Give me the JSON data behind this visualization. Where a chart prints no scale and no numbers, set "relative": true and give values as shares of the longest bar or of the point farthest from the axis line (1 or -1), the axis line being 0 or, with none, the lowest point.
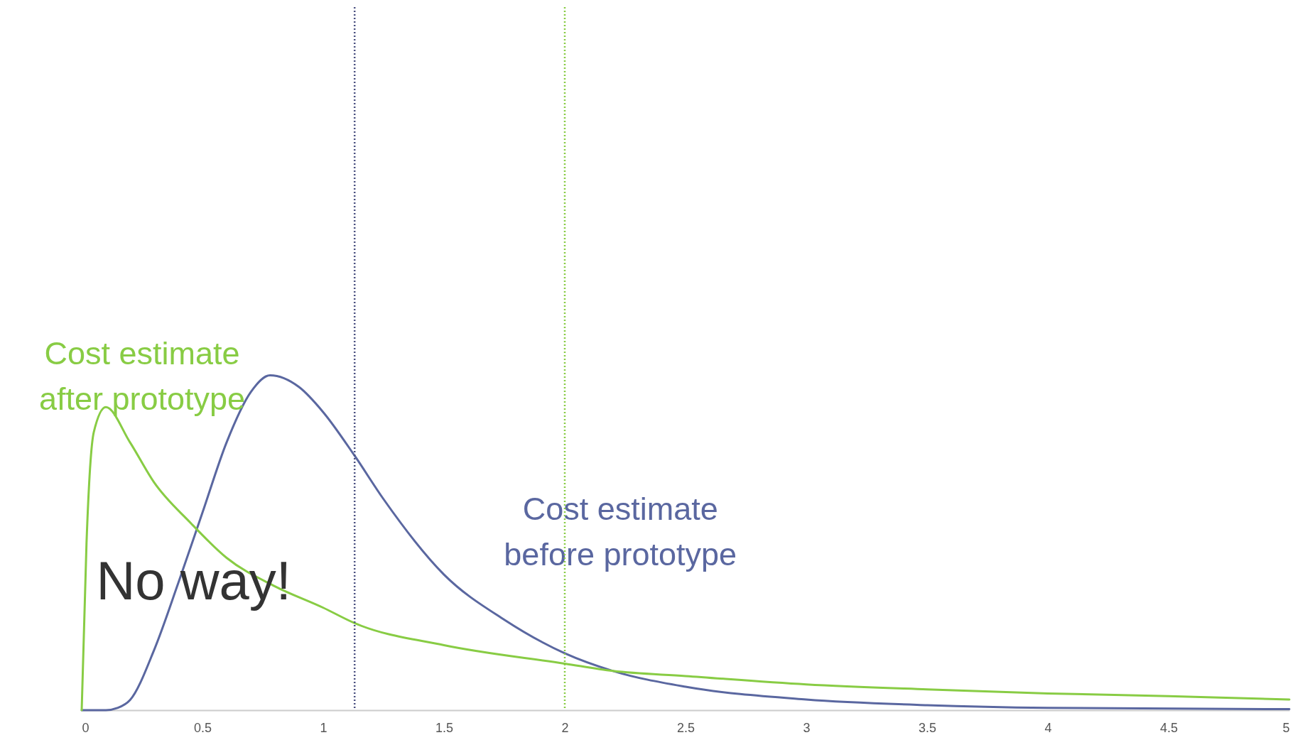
{
  "chart_data": {
    "type": "line",
    "relative": true,
    "x": [
      0,
      0.1,
      0.15,
      0.2,
      0.3,
      0.4,
      0.5,
      0.6,
      0.7,
      0.78,
      0.9,
      1.0,
      1.13,
      1.25,
      1.5,
      1.75,
      2.0,
      2.2,
      2.5,
      3,
      3.5,
      4,
      5
    ],
    "series": [
      {
        "name": "Cost estimate before prototype",
        "color": "#5a67a0",
        "values": [
          0,
          0,
          0.007,
          0.03,
          0.18,
          0.38,
          0.59,
          0.8,
          0.95,
          1.0,
          0.965,
          0.89,
          0.76,
          0.63,
          0.405,
          0.27,
          0.17,
          0.117,
          0.07,
          0.032,
          0.015,
          0.007,
          0.003
        ]
      },
      {
        "name": "Cost estimate after prototype",
        "color": "#88cc44",
        "x": [
          0,
          0.02,
          0.05,
          0.1,
          0.2,
          0.3,
          0.45,
          0.6,
          0.8,
          1.0,
          1.13,
          1.5,
          2.0,
          2.2,
          2.5,
          3,
          3.5,
          4,
          4.5,
          5
        ],
        "values": [
          0,
          0.5,
          0.83,
          0.905,
          0.8,
          0.68,
          0.56,
          0.455,
          0.37,
          0.306,
          0.26,
          0.194,
          0.139,
          0.117,
          0.102,
          0.077,
          0.062,
          0.05,
          0.042,
          0.032
        ]
      }
    ],
    "xlim": [
      0,
      5
    ],
    "xticks": [
      0,
      0.5,
      1,
      1.5,
      2,
      2.5,
      3,
      3.5,
      4,
      4.5,
      5
    ],
    "ref_lines": [
      {
        "axis": "x",
        "value": 1.13,
        "color": "#4a5080",
        "line_style": "dotted"
      },
      {
        "axis": "x",
        "value": 2,
        "color": "#88cc44",
        "line_style": "dotted"
      }
    ],
    "annotations": [
      "No way!"
    ],
    "grid": false,
    "marker": "none",
    "line_style": "solid"
  }
}
